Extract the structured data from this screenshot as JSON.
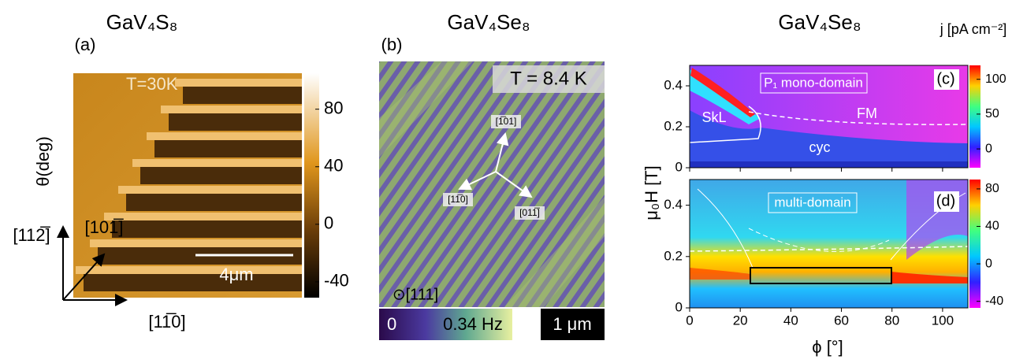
{
  "panels": [
    {
      "title": "GaV₄S₈",
      "label": "(a)",
      "annotations": [
        "T=30K",
        "4μm"
      ],
      "y_label": "θ(deg)",
      "directions": [
        "[112̅]",
        "[101̅]",
        "[11̅0]"
      ],
      "colorbar": {
        "lim": [
          -51,
          105
        ],
        "ticks": [
          80,
          40,
          0,
          -40
        ]
      }
    },
    {
      "title": "GaV₄Se₈",
      "label": "(b)",
      "annotation": "T = 8.4 K",
      "directions": [
        "[1̅01]",
        "[11̅0]",
        "[011̅]",
        "⊙[111]"
      ],
      "colorbar": {
        "labels": [
          "0",
          "0.34 Hz"
        ]
      },
      "scale_bar": "1 μm"
    },
    {
      "title": "GaV₄Se₈",
      "colorbar_title": "j [pA cm⁻²]",
      "x_label": "ϕ [°]",
      "y_label": "μ₀H [T]",
      "xlim": [
        0,
        110
      ],
      "xticks": [
        0,
        20,
        40,
        60,
        80,
        100
      ],
      "subplots": [
        {
          "label": "(c)",
          "ylim": [
            0,
            0.5
          ],
          "yticks": [
            0,
            0.2,
            0.4
          ],
          "annotations": [
            "P₁ mono-domain",
            "FM",
            "SkL",
            "cyc"
          ],
          "colorbar": {
            "lim": [
              -27,
              120
            ],
            "ticks": [
              100,
              50,
              0
            ]
          }
        },
        {
          "label": "(d)",
          "ylim": [
            0,
            0.5
          ],
          "yticks": [
            0,
            0.2,
            0.4
          ],
          "annotations": [
            "multi-domain"
          ],
          "colorbar": {
            "lim": [
              -47,
              90
            ],
            "ticks": [
              80,
              40,
              0,
              -40
            ]
          }
        }
      ]
    }
  ]
}
